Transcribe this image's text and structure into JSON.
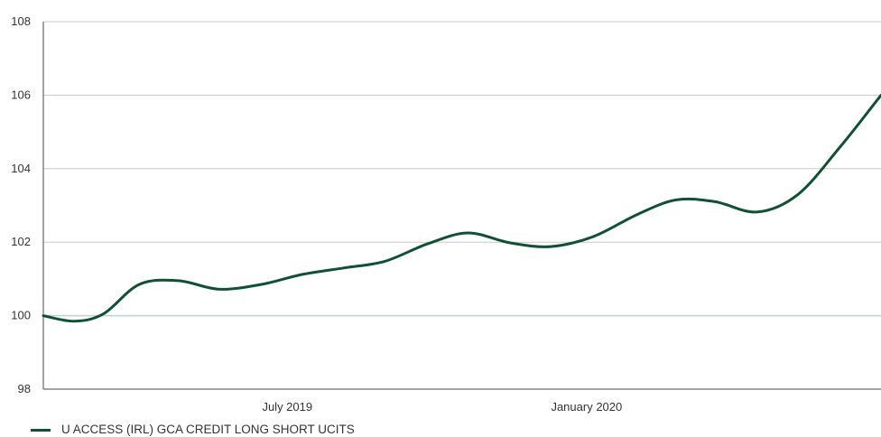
{
  "chart_data": {
    "type": "line",
    "x_ticks": [
      "July 2019",
      "January 2020"
    ],
    "ylim": [
      98,
      108
    ],
    "y_ticks": [
      "98",
      "100",
      "102",
      "104",
      "106",
      "108"
    ],
    "baseline": 100,
    "grid": true,
    "legend_position": "bottom-left",
    "series": [
      {
        "name": "U ACCESS (IRL) GCA CREDIT LONG SHORT UCITS",
        "color": "#0f5132",
        "x": [
          "2019-02",
          "2019-02-20",
          "2019-03-10",
          "2019-04-01",
          "2019-04-25",
          "2019-05-20",
          "2019-06-15",
          "2019-07-10",
          "2019-08-05",
          "2019-08-30",
          "2019-09-25",
          "2019-10-20",
          "2019-11-15",
          "2019-12-10",
          "2020-01-05",
          "2020-02-01",
          "2020-02-25",
          "2020-03-20",
          "2020-04-15",
          "2020-05-10",
          "2020-06-05",
          "2020-06-30"
        ],
        "values": [
          100.0,
          99.85,
          100.05,
          100.85,
          100.95,
          100.72,
          100.85,
          101.12,
          101.3,
          101.48,
          101.95,
          102.25,
          101.98,
          101.88,
          102.15,
          102.75,
          103.15,
          103.1,
          102.82,
          103.3,
          104.6,
          106.0
        ]
      }
    ]
  }
}
